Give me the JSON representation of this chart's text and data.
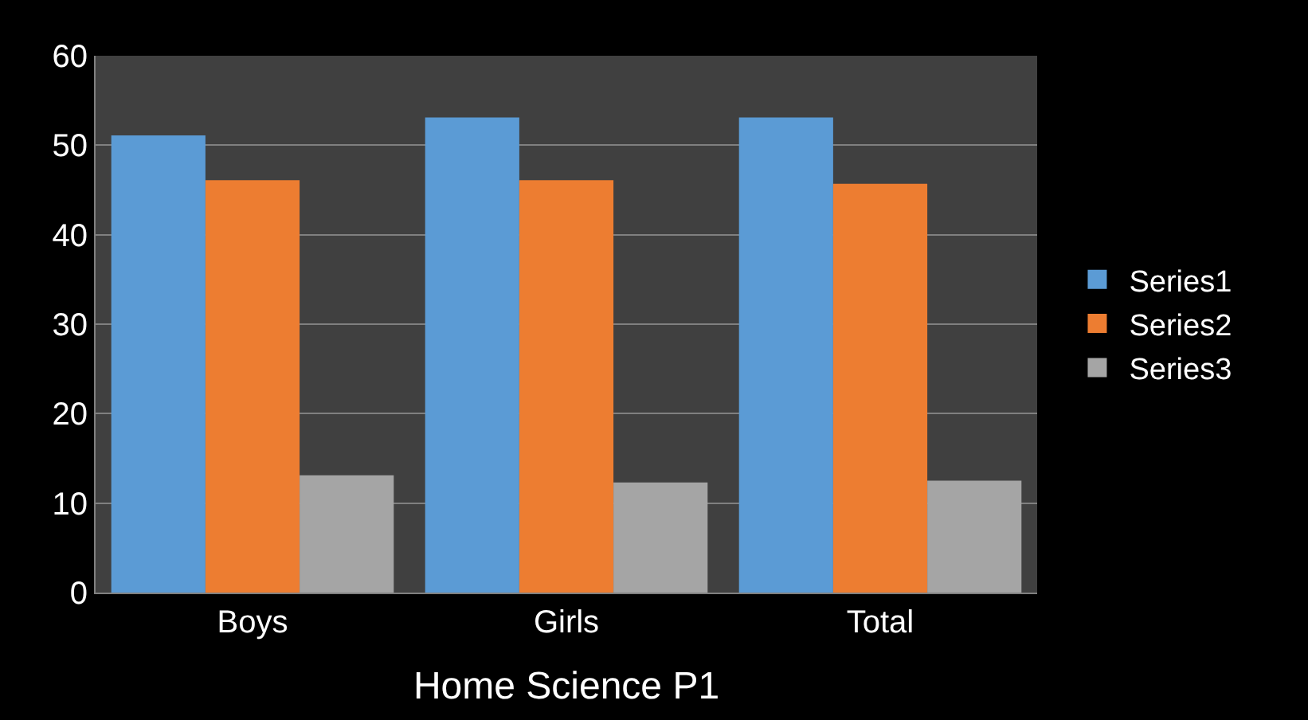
{
  "chart_data": {
    "type": "bar",
    "categories": [
      "Boys",
      "Girls",
      "Total"
    ],
    "xlabel": "Home Science P1",
    "series": [
      {
        "name": "Series1",
        "color": "#5b9bd5",
        "values": [
          51.1,
          53.1,
          53.1
        ]
      },
      {
        "name": "Series2",
        "color": "#ed7d31",
        "values": [
          46.1,
          46.1,
          45.7
        ]
      },
      {
        "name": "Series3",
        "color": "#a5a5a5",
        "values": [
          13.1,
          12.3,
          12.5
        ]
      }
    ],
    "ylim": [
      0,
      60
    ],
    "yticks": [
      0,
      10,
      20,
      30,
      40,
      50,
      60
    ],
    "grid": "y",
    "legend": "right"
  }
}
